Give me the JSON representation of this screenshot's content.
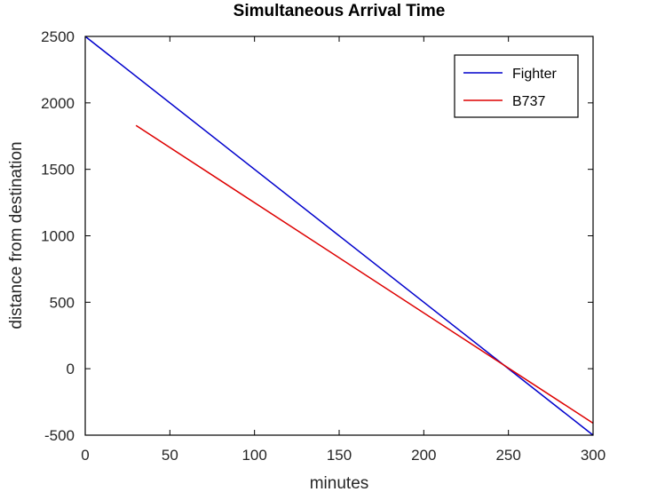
{
  "chart_data": {
    "type": "line",
    "title": "Simultaneous Arrival Time",
    "xlabel": "minutes",
    "ylabel": "distance from destination",
    "xlim": [
      0,
      300
    ],
    "ylim": [
      -500,
      2500
    ],
    "xticks": [
      0,
      50,
      100,
      150,
      200,
      250,
      300
    ],
    "yticks": [
      -500,
      0,
      500,
      1000,
      1500,
      2000,
      2500
    ],
    "grid": false,
    "legend_position": "top-right",
    "series": [
      {
        "name": "Fighter",
        "color": "#0000cc",
        "x": [
          0,
          300
        ],
        "y": [
          2500,
          -500
        ]
      },
      {
        "name": "B737",
        "color": "#dd0000",
        "x": [
          30,
          300
        ],
        "y": [
          1830,
          -410
        ]
      }
    ]
  }
}
